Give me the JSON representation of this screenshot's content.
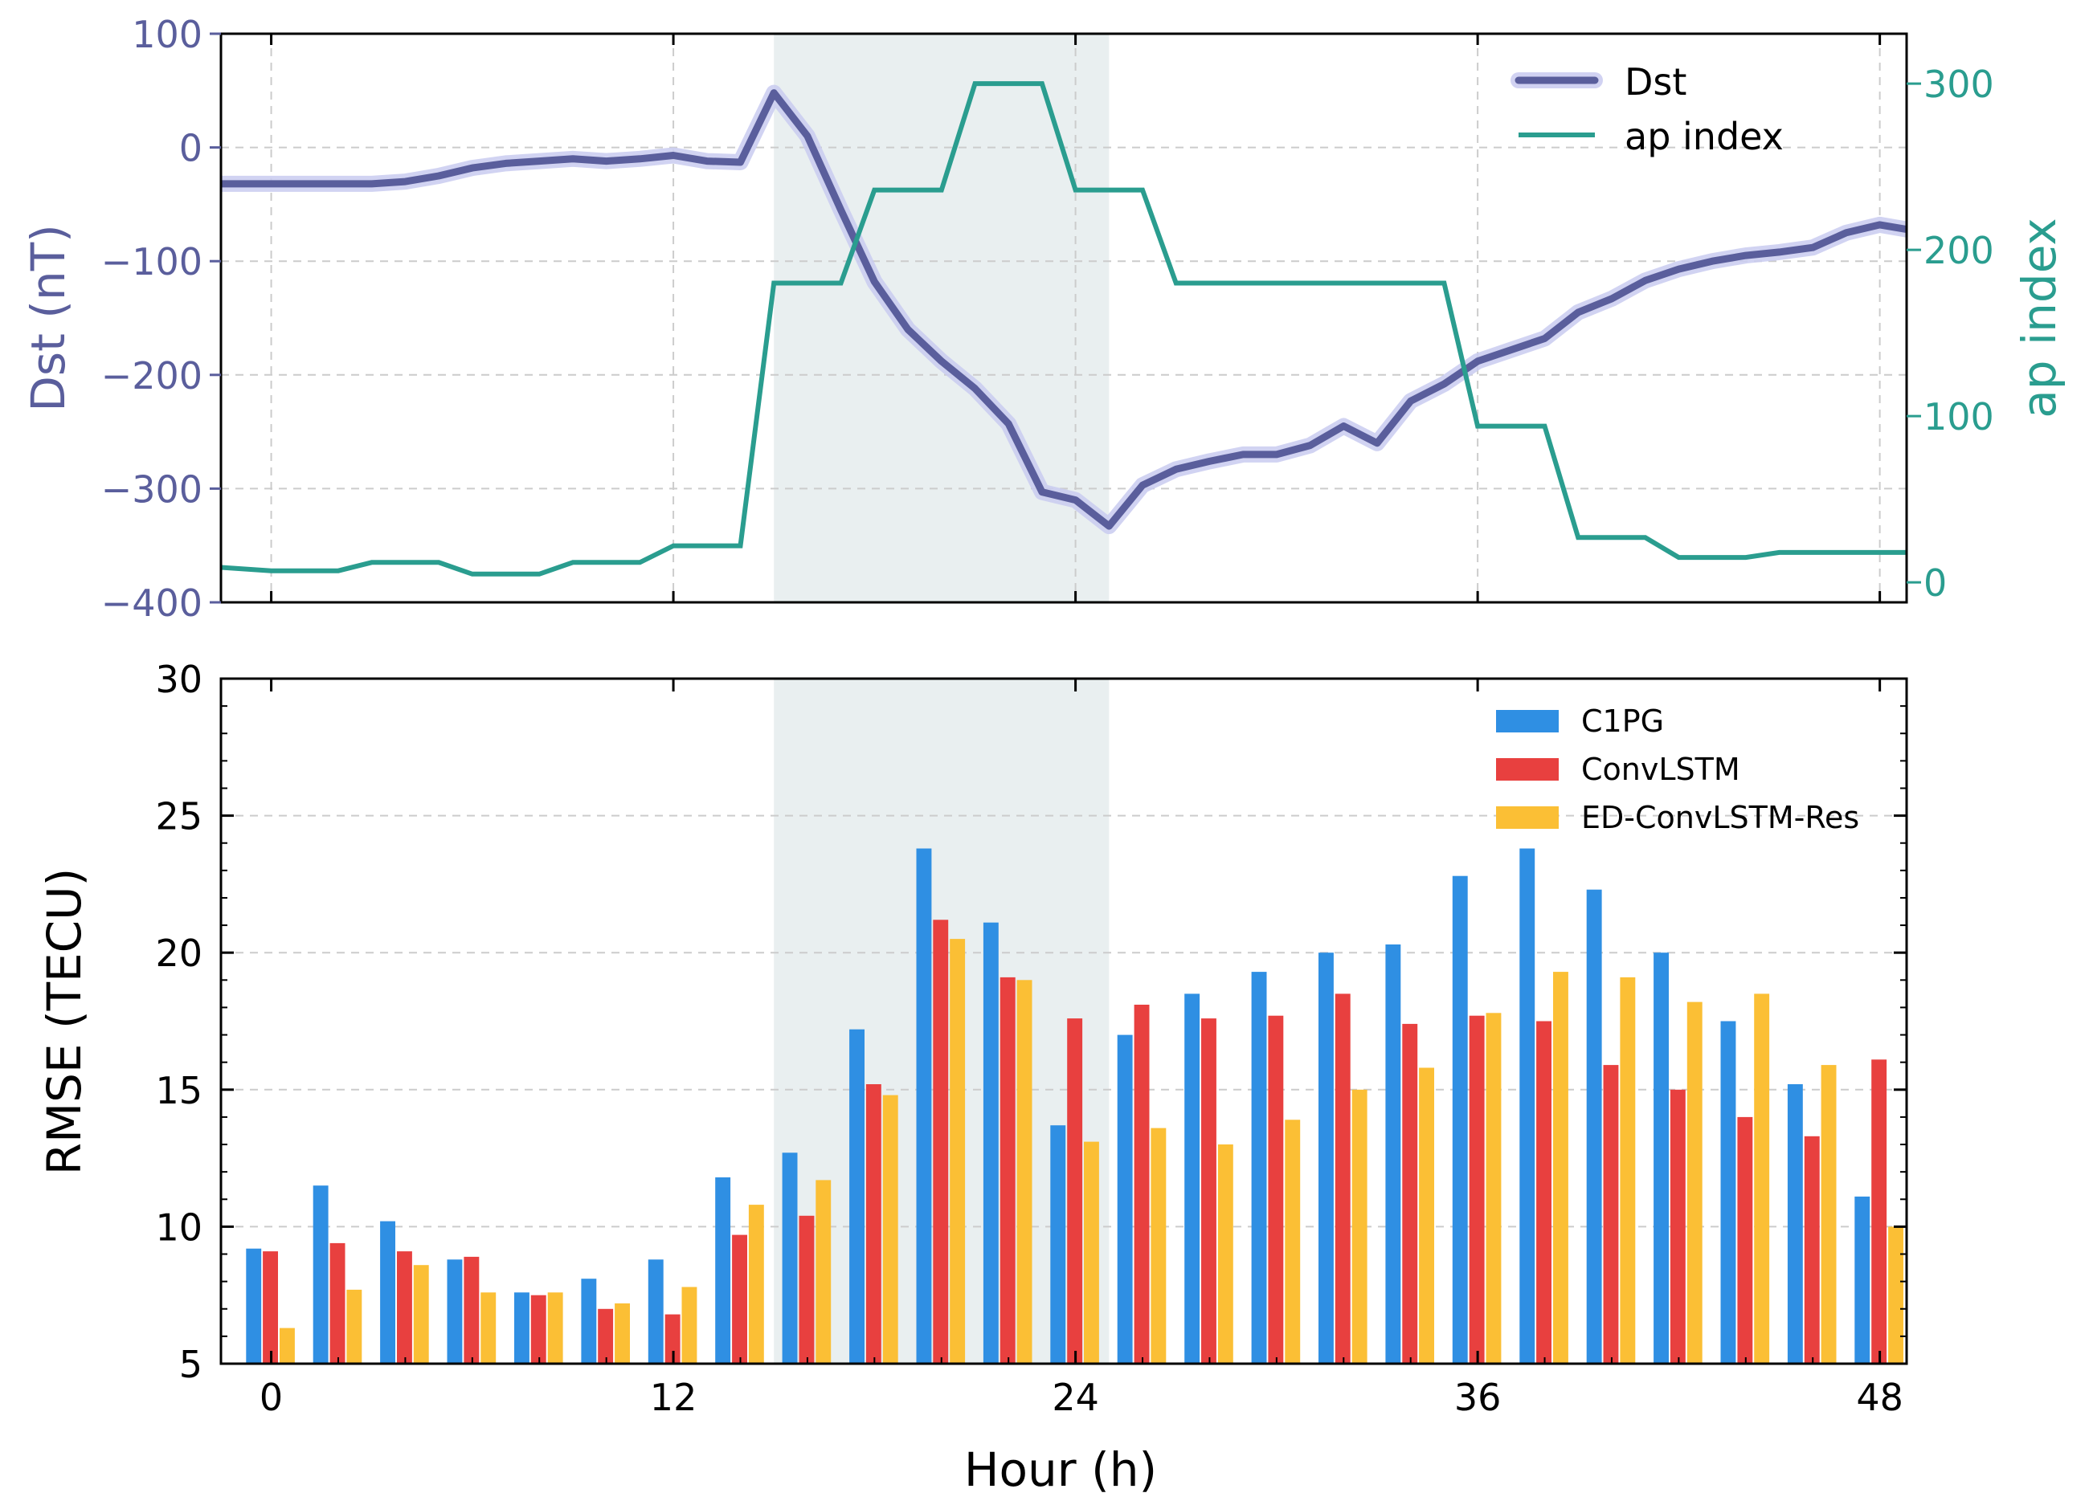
{
  "colors": {
    "dst": "#5a5e9c",
    "dst_glow": "#c9cbf0",
    "ap": "#2a9d8f",
    "storm_band": "#e9eff0",
    "grid": "#cccccc",
    "c1pg": "#2f8fe3",
    "convlstm": "#e8403f",
    "edconv": "#fbbf35",
    "axis": "#000000"
  },
  "chart_data": [
    {
      "type": "line",
      "name": "geomagnetic-indices",
      "xlim": [
        -1.5,
        48.8
      ],
      "xticks": [
        0,
        12,
        24,
        36,
        48
      ],
      "ylabel": "Dst (nT)",
      "ylim": [
        -400,
        100
      ],
      "yticks": [
        100,
        0,
        -100,
        -200,
        -300,
        -400
      ],
      "ytick_labels": [
        "100",
        "0",
        "−100",
        "−200",
        "−300",
        "−400"
      ],
      "y2label": "ap index",
      "y2lim": [
        -12,
        330
      ],
      "y2ticks": [
        0,
        100,
        200,
        300
      ],
      "y2tick_labels": [
        "0",
        "100",
        "200",
        "300"
      ],
      "storm_window": [
        15,
        25
      ],
      "legend": {
        "position": "top-right",
        "entries": [
          "Dst",
          "ap index"
        ]
      },
      "series": [
        {
          "name": "Dst",
          "x": [
            -1.5,
            0,
            1,
            2,
            3,
            4,
            5,
            6,
            7,
            8,
            9,
            10,
            11,
            12,
            13,
            14,
            15,
            16,
            17,
            18,
            19,
            20,
            21,
            22,
            23,
            24,
            25,
            26,
            27,
            28,
            29,
            30,
            31,
            32,
            33,
            34,
            35,
            36,
            37,
            38,
            39,
            40,
            41,
            42,
            43,
            44,
            45,
            46,
            47,
            48,
            48.8
          ],
          "values": [
            -32,
            -32,
            -32,
            -32,
            -32,
            -30,
            -25,
            -18,
            -14,
            -12,
            -10,
            -12,
            -10,
            -7,
            -12,
            -13,
            48,
            10,
            -55,
            -118,
            -160,
            -188,
            -212,
            -243,
            -303,
            -310,
            -333,
            -297,
            -283,
            -276,
            -270,
            -270,
            -262,
            -245,
            -260,
            -223,
            -208,
            -188,
            -178,
            -168,
            -145,
            -133,
            -117,
            -107,
            -100,
            -95,
            -92,
            -88,
            -75,
            -68,
            -72
          ]
        },
        {
          "name": "ap index",
          "x": [
            -1.5,
            0,
            1,
            2,
            3,
            4,
            5,
            6,
            7,
            8,
            9,
            10,
            11,
            12,
            13,
            14,
            15,
            16,
            17,
            18,
            19,
            20,
            21,
            22,
            23,
            24,
            25,
            26,
            27,
            28,
            29,
            30,
            31,
            32,
            33,
            34,
            35,
            36,
            37,
            38,
            39,
            40,
            41,
            42,
            43,
            44,
            45,
            46,
            47,
            48,
            48.8
          ],
          "values": [
            9,
            7,
            7,
            7,
            12,
            12,
            12,
            5,
            5,
            5,
            12,
            12,
            12,
            22,
            22,
            22,
            180,
            180,
            180,
            236,
            236,
            236,
            300,
            300,
            300,
            236,
            236,
            236,
            180,
            180,
            180,
            180,
            180,
            180,
            180,
            180,
            180,
            94,
            94,
            94,
            27,
            27,
            27,
            15,
            15,
            15,
            18,
            18,
            18,
            18,
            18
          ]
        }
      ]
    },
    {
      "type": "bar",
      "name": "rmse-bars",
      "xlabel": "Hour (h)",
      "ylabel": "RMSE (TECU)",
      "xlim": [
        -1.5,
        48.8
      ],
      "xticks": [
        0,
        12,
        24,
        36,
        48
      ],
      "xtick_labels": [
        "0",
        "12",
        "24",
        "36",
        "48"
      ],
      "ylim": [
        5,
        30
      ],
      "yticks": [
        5,
        10,
        15,
        20,
        25,
        30
      ],
      "ytick_labels": [
        "5",
        "10",
        "15",
        "20",
        "25",
        "30"
      ],
      "storm_window": [
        15,
        25
      ],
      "legend": {
        "position": "top-right",
        "entries": [
          "C1PG",
          "ConvLSTM",
          "ED-ConvLSTM-Res"
        ]
      },
      "x": [
        0,
        2,
        4,
        6,
        8,
        10,
        12,
        14,
        16,
        18,
        20,
        22,
        24,
        26,
        28,
        30,
        32,
        34,
        36,
        38,
        40,
        42,
        44,
        46,
        48
      ],
      "series": [
        {
          "name": "C1PG",
          "values": [
            9.2,
            11.5,
            10.2,
            8.8,
            7.6,
            8.1,
            8.8,
            11.8,
            12.7,
            17.2,
            23.8,
            21.1,
            13.7,
            17.0,
            18.5,
            19.3,
            20.0,
            20.3,
            22.8,
            23.8,
            22.3,
            20.0,
            17.5,
            15.2,
            11.1
          ]
        },
        {
          "name": "ConvLSTM",
          "values": [
            9.1,
            9.4,
            9.1,
            8.9,
            7.5,
            7.0,
            6.8,
            9.7,
            10.4,
            15.2,
            21.2,
            19.1,
            17.6,
            18.1,
            17.6,
            17.7,
            18.5,
            17.4,
            17.7,
            17.5,
            15.9,
            15.0,
            14.0,
            13.3,
            16.1
          ]
        },
        {
          "name": "ED-ConvLSTM-Res",
          "values": [
            6.3,
            7.7,
            8.6,
            7.6,
            7.6,
            7.2,
            7.8,
            10.8,
            11.7,
            14.8,
            20.5,
            19.0,
            13.1,
            13.6,
            13.0,
            13.9,
            15.0,
            15.8,
            17.8,
            19.3,
            19.1,
            18.2,
            18.5,
            15.9,
            10.0
          ]
        }
      ]
    }
  ]
}
